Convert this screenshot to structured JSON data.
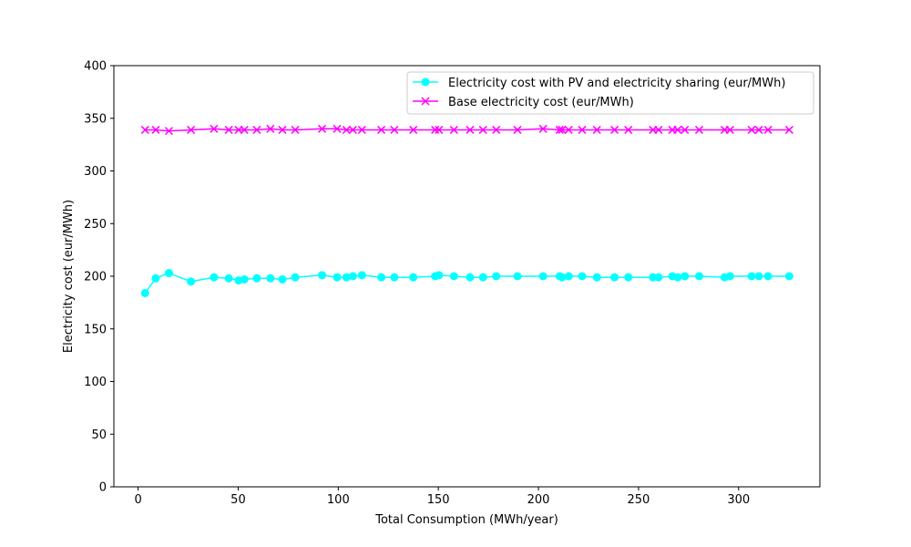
{
  "chart_data": {
    "type": "line",
    "title": "",
    "xlabel": "Total Consumption (MWh/year)",
    "ylabel": "Electricity cost (eur/MWh)",
    "xlim": [
      -12.1,
      340.6
    ],
    "ylim": [
      0,
      400
    ],
    "xticks": [
      0,
      50,
      100,
      150,
      200,
      250,
      300
    ],
    "yticks": [
      0,
      50,
      100,
      150,
      200,
      250,
      300,
      350,
      400
    ],
    "grid": false,
    "legend_position": "top-right",
    "x": [
      3.5,
      8.8,
      15.4,
      26.4,
      37.9,
      45.3,
      50.2,
      53.1,
      59.3,
      66.1,
      72.1,
      78.5,
      91.9,
      99.4,
      104.1,
      107.3,
      111.8,
      121.5,
      128.0,
      137.5,
      148.4,
      150.3,
      157.8,
      165.8,
      172.3,
      178.9,
      189.5,
      202.3,
      210.6,
      211.8,
      215.1,
      221.8,
      229.2,
      238.0,
      244.9,
      257.2,
      260.0,
      266.9,
      269.5,
      273.1,
      280.3,
      293.0,
      295.7,
      306.5,
      310.1,
      314.7,
      325.3
    ],
    "series": [
      {
        "name": "Electricity cost with PV and electricity sharing (eur/MWh)",
        "color": "#00ffff",
        "marker": "circle",
        "values": [
          184,
          198,
          203,
          195,
          199,
          198,
          196,
          197,
          198,
          198,
          197,
          199,
          201,
          199,
          199,
          200,
          201,
          199,
          199,
          199,
          200,
          201,
          200,
          199,
          199,
          200,
          200,
          200,
          200,
          199,
          200,
          200,
          199,
          199,
          199,
          199,
          199,
          200,
          199,
          200,
          200,
          199,
          200,
          200,
          200,
          200,
          200
        ]
      },
      {
        "name": "Base electricity cost (eur/MWh)",
        "color": "#ff00ff",
        "marker": "x",
        "values": [
          339,
          339,
          338,
          339,
          340,
          339,
          339,
          339,
          339,
          340,
          339,
          339,
          340,
          340,
          339,
          339,
          339,
          339,
          339,
          339,
          339,
          339,
          339,
          339,
          339,
          339,
          339,
          340,
          339,
          339,
          339,
          339,
          339,
          339,
          339,
          339,
          339,
          339,
          339,
          339,
          339,
          339,
          339,
          339,
          339,
          339,
          339
        ]
      }
    ]
  }
}
